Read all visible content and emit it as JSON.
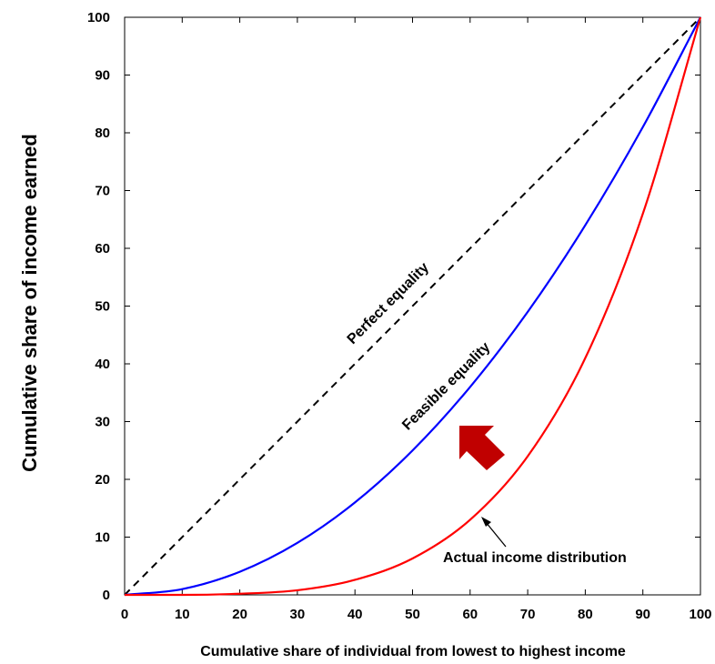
{
  "chart_data": {
    "type": "line",
    "title": "",
    "xlabel": "Cumulative share of individual from lowest to highest income",
    "ylabel": "Cumulative share of income earned",
    "xlim": [
      0,
      100
    ],
    "ylim": [
      0,
      100
    ],
    "xticks": [
      "0",
      "10",
      "20",
      "30",
      "40",
      "50",
      "60",
      "70",
      "80",
      "90",
      "100"
    ],
    "yticks": [
      "0",
      "10",
      "20",
      "30",
      "40",
      "50",
      "60",
      "70",
      "80",
      "90",
      "100"
    ],
    "grid": false,
    "series": [
      {
        "name": "Perfect equality",
        "color": "#000000",
        "style": "dashed",
        "x": [
          0,
          100
        ],
        "y": [
          0,
          100
        ]
      },
      {
        "name": "Feasible equality",
        "color": "#0000ff",
        "style": "solid",
        "x": [
          0,
          10,
          20,
          30,
          40,
          50,
          60,
          70,
          80,
          90,
          100
        ],
        "y": [
          0,
          1,
          4,
          9,
          16,
          25,
          36,
          49,
          64,
          81,
          100
        ]
      },
      {
        "name": "Actual income distribution",
        "color": "#ff0000",
        "style": "solid",
        "x": [
          0,
          10,
          20,
          30,
          40,
          50,
          60,
          70,
          80,
          90,
          100
        ],
        "y": [
          0,
          0,
          0.2,
          0.8,
          2.6,
          6.3,
          13,
          24,
          41,
          66,
          100
        ]
      }
    ],
    "annotations": {
      "perfect": "Perfect equality",
      "feasible": "Feasible equality",
      "actual": "Actual income distribution"
    },
    "arrow_color": "#c00000"
  }
}
